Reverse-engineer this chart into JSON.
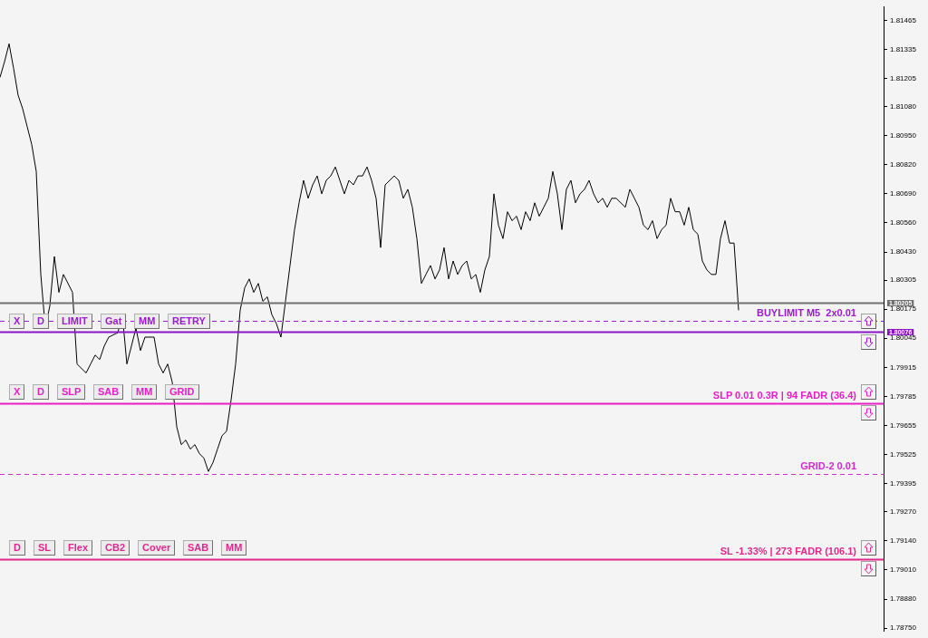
{
  "chart_data": {
    "type": "line",
    "tick_labels": "y",
    "grid": false,
    "legend": false,
    "categories": [
      null,
      null,
      null,
      null,
      null,
      null,
      null,
      null,
      null,
      null,
      null,
      null,
      null,
      null,
      null,
      null,
      null,
      null,
      null,
      null,
      null,
      null,
      null,
      null,
      null,
      null,
      null,
      null,
      null,
      null,
      null,
      null,
      null,
      null,
      null,
      null,
      null,
      null,
      null,
      null,
      null,
      null,
      null,
      null,
      null,
      null,
      null,
      null,
      null,
      null,
      null,
      null,
      null,
      null,
      null,
      null,
      null,
      null,
      null,
      null,
      null,
      null,
      null,
      null,
      null,
      null,
      null,
      null,
      null,
      null,
      null,
      null,
      null,
      null,
      null,
      null,
      null,
      null,
      null,
      null,
      null,
      null,
      null,
      null,
      null,
      null,
      null,
      null,
      null,
      null,
      null,
      null,
      null,
      null,
      null,
      null,
      null,
      null,
      null,
      null,
      null,
      null,
      null,
      null,
      null,
      null,
      null,
      null,
      null,
      null,
      null,
      null,
      null,
      null,
      null,
      null,
      null,
      null,
      null,
      null,
      null,
      null,
      null,
      null,
      null,
      null,
      null,
      null,
      null,
      null,
      null,
      null,
      null,
      null,
      null,
      null,
      null,
      null,
      null,
      null,
      null,
      null,
      null,
      null,
      null,
      null,
      null,
      null,
      null,
      null,
      null,
      null,
      null,
      null,
      null,
      null,
      null,
      null,
      null,
      null,
      null,
      null,
      null,
      null,
      null,
      null,
      null,
      null,
      null,
      null,
      null,
      null,
      null,
      null,
      null,
      null,
      null,
      null,
      null,
      null,
      null,
      null,
      null,
      null,
      null,
      null,
      null,
      null,
      null,
      null,
      null,
      null,
      null,
      null,
      null,
      null
    ],
    "series": [
      {
        "color": "#000000",
        "values": [
          1.8121,
          1.8128,
          1.8136,
          1.8125,
          1.8113,
          1.8107,
          1.8099,
          1.8091,
          1.8079,
          1.8033,
          1.8009,
          1.8019,
          1.8041,
          1.8025,
          1.8033,
          null,
          1.8025,
          1.7993,
          null,
          1.7989,
          1.7993,
          1.7997,
          1.7995,
          1.8001,
          1.8005,
          null,
          1.8007,
          1.8015,
          1.7993,
          1.8001,
          1.8009,
          1.7999,
          1.8005,
          null,
          1.8005,
          1.7993,
          1.7989,
          1.7993,
          1.7985,
          1.7965,
          1.7957,
          1.7959,
          1.7955,
          1.7957,
          1.7953,
          1.7951,
          1.7945,
          1.7949,
          1.7955,
          1.7961,
          1.7963,
          1.7977,
          1.7993,
          1.8017,
          1.8027,
          1.8031,
          1.8025,
          1.8029,
          1.8021,
          1.8023,
          1.8015,
          1.8011,
          1.8005,
          1.8021,
          1.8037,
          1.8053,
          1.8065,
          1.8075,
          1.8067,
          1.8073,
          1.8077,
          1.8069,
          1.8075,
          1.8077,
          1.8081,
          1.8075,
          1.8069,
          1.8075,
          1.8073,
          1.8077,
          1.8077,
          1.8081,
          1.8075,
          1.8067,
          1.8045,
          1.8073,
          1.8075,
          1.8077,
          1.8075,
          1.8067,
          1.8071,
          1.8063,
          1.8049,
          1.8029,
          1.8033,
          1.8037,
          1.8031,
          1.8035,
          1.8045,
          1.8031,
          1.8039,
          1.8033,
          1.8037,
          1.8039,
          1.8031,
          1.8033,
          1.8025,
          1.8035,
          1.8041,
          1.8069,
          1.8055,
          1.8049,
          1.8061,
          1.8057,
          1.8059,
          1.8053,
          1.8061,
          1.8057,
          1.8065,
          1.8059,
          1.8063,
          1.8067,
          1.8079,
          1.8069,
          1.8053,
          1.8071,
          1.8075,
          1.8065,
          1.8069,
          1.8071,
          1.8075,
          1.8069,
          1.8065,
          1.8067,
          1.8063,
          1.8067,
          1.8067,
          1.8065,
          1.8063,
          1.8071,
          1.8067,
          1.8063,
          1.8055,
          1.8053,
          1.8057,
          1.8049,
          1.8053,
          1.8055,
          1.8067,
          1.8061,
          1.8061,
          1.8055,
          1.8063,
          1.8053,
          1.8051,
          1.8039,
          1.8035,
          1.8033,
          1.8033,
          1.8049,
          1.8057,
          1.8047,
          1.8047,
          1.8017,
          null,
          null,
          null,
          null,
          null,
          null,
          null,
          null,
          null,
          null,
          null,
          null,
          null,
          null,
          null,
          null,
          null,
          null,
          null,
          null,
          null,
          null,
          null,
          null,
          null,
          null,
          null,
          null,
          null,
          null,
          null,
          null
        ]
      }
    ],
    "ylim": [
      1.78738,
      1.81524
    ],
    "yticks": [
      {
        "value": 1.81465,
        "label": "1.81465"
      },
      {
        "value": 1.81335,
        "label": "1.81335"
      },
      {
        "value": 1.81205,
        "label": "1.81205"
      },
      {
        "value": 1.8108,
        "label": "1.81080"
      },
      {
        "value": 1.8095,
        "label": "1.80950"
      },
      {
        "value": 1.8082,
        "label": "1.80820"
      },
      {
        "value": 1.8069,
        "label": "1.80690"
      },
      {
        "value": 1.8056,
        "label": "1.80560"
      },
      {
        "value": 1.8043,
        "label": "1.80430"
      },
      {
        "value": 1.80305,
        "label": "1.80305"
      },
      {
        "value": 1.80175,
        "label": "1.80175"
      },
      {
        "value": 1.80045,
        "label": "1.80045"
      },
      {
        "value": 1.79915,
        "label": "1.79915"
      },
      {
        "value": 1.79785,
        "label": "1.79785"
      },
      {
        "value": 1.79655,
        "label": "1.79655"
      },
      {
        "value": 1.79525,
        "label": "1.79525"
      },
      {
        "value": 1.79395,
        "label": "1.79395"
      },
      {
        "value": 1.7927,
        "label": "1.79270"
      },
      {
        "value": 1.7914,
        "label": "1.79140"
      },
      {
        "value": 1.7901,
        "label": "1.79010"
      },
      {
        "value": 1.7888,
        "label": "1.78880"
      },
      {
        "value": 1.7875,
        "label": "1.78750"
      }
    ],
    "ref_lines": [
      {
        "axis": "y",
        "value": 1.80205,
        "label": "1.80205",
        "color": "#707070",
        "line_style": "solid"
      },
      {
        "axis": "y",
        "value": 1.80123,
        "label": "BUYLIMIT M5  2x0.01",
        "color": "#9a1ad0",
        "line_style": "dashed"
      },
      {
        "axis": "y",
        "value": 1.80076,
        "label": "1.80076",
        "color": "#8a14c8",
        "line_style": "solid"
      },
      {
        "axis": "y",
        "value": 1.79756,
        "label": "SLP 0.01 0.3R | 94 FADR (36.4)",
        "color": "#e81ec8",
        "line_style": "solid"
      },
      {
        "axis": "y",
        "value": 1.79438,
        "label": "GRID-2 0.01",
        "color": "#d02ad0",
        "line_style": "dashed"
      },
      {
        "axis": "y",
        "value": 1.79059,
        "label": "SL -1.33% | 273 FADR (106.1)",
        "color": "#e0288c",
        "line_style": "solid"
      }
    ],
    "annotations": [
      "X",
      "D",
      "LIMIT",
      "Gat",
      "MM",
      "RETRY",
      "X",
      "D",
      "SLP",
      "SAB",
      "MM",
      "GRID",
      "D",
      "SL",
      "Flex",
      "CB2",
      "Cover",
      "SAB",
      "MM"
    ]
  }
}
